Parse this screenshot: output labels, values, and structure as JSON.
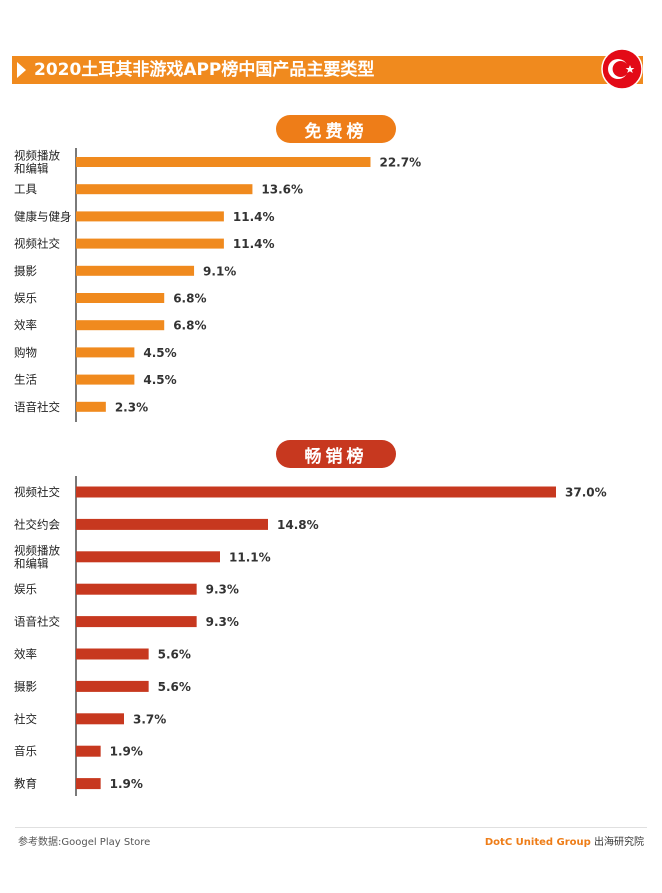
{
  "header": {
    "title": "2020土耳其非游戏APP榜中国产品主要类型",
    "flag_icon": "turkey-flag-icon",
    "accent_color": "#f08a1e"
  },
  "sections": {
    "free_label": "免费榜",
    "grossing_label": "畅销榜"
  },
  "chart_data": [
    {
      "type": "bar",
      "orientation": "horizontal",
      "section": "免费榜",
      "color": "#f08a1e",
      "categories": [
        "视频播放\n和编辑",
        "工具",
        "健康与健身",
        "视频社交",
        "摄影",
        "娱乐",
        "效率",
        "购物",
        "生活",
        "语音社交"
      ],
      "values": [
        22.7,
        13.6,
        11.4,
        11.4,
        9.1,
        6.8,
        6.8,
        4.5,
        4.5,
        2.3
      ],
      "value_labels": [
        "22.7%",
        "13.6%",
        "11.4%",
        "11.4%",
        "9.1%",
        "6.8%",
        "6.8%",
        "4.5%",
        "4.5%",
        "2.3%"
      ],
      "xlim": [
        0,
        37.0
      ]
    },
    {
      "type": "bar",
      "orientation": "horizontal",
      "section": "畅销榜",
      "color": "#c7381f",
      "categories": [
        "视频社交",
        "社交约会",
        "视频播放\n和编辑",
        "娱乐",
        "语音社交",
        "效率",
        "摄影",
        "社交",
        "音乐",
        "教育"
      ],
      "values": [
        37.0,
        14.8,
        11.1,
        9.3,
        9.3,
        5.6,
        5.6,
        3.7,
        1.9,
        1.9
      ],
      "value_labels": [
        "37.0%",
        "14.8%",
        "11.1%",
        "9.3%",
        "9.3%",
        "5.6%",
        "5.6%",
        "3.7%",
        "1.9%",
        "1.9%"
      ],
      "xlim": [
        0,
        37.0
      ]
    }
  ],
  "footer": {
    "source": "参考数据:Googel Play Store",
    "brand": "DotC United Group",
    "brand_suffix": "出海研究院"
  }
}
